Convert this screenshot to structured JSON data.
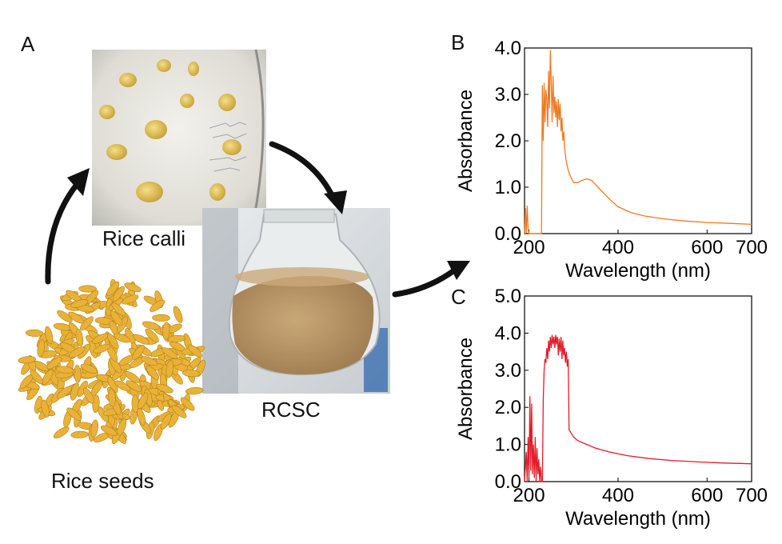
{
  "panels": {
    "a": {
      "letter": "A",
      "calli_label": "Rice calli",
      "rcsc_label": "RCSC",
      "seeds_label": "Rice seeds"
    },
    "b": {
      "letter": "B"
    },
    "c": {
      "letter": "C"
    }
  },
  "colors": {
    "orange_series": "#f07a20",
    "red_series": "#e01e2a",
    "seed": "#e9b237",
    "broth": "#b89465"
  },
  "chart_data": [
    {
      "panel": "B",
      "type": "line",
      "xlabel": "Wavelength (nm)",
      "ylabel": "Absorbance",
      "xlim": [
        190,
        700
      ],
      "ylim": [
        0,
        4.0
      ],
      "xticks": [
        200,
        400,
        600,
        700
      ],
      "yticks": [
        0.0,
        1.0,
        2.0,
        3.0,
        4.0
      ],
      "xtick_labels": [
        "200",
        "400",
        "600",
        "700"
      ],
      "ytick_labels": [
        "0.0",
        "1.0",
        "2.0",
        "3.0",
        "4.0"
      ],
      "color": "#f07a20",
      "x": [
        190,
        192,
        194,
        196,
        198,
        200,
        202,
        210,
        218,
        225,
        228,
        230,
        232,
        234,
        236,
        238,
        240,
        242,
        244,
        246,
        248,
        250,
        252,
        254,
        256,
        258,
        260,
        262,
        264,
        266,
        268,
        270,
        272,
        274,
        276,
        278,
        280,
        283,
        286,
        290,
        295,
        300,
        310,
        320,
        330,
        340,
        350,
        360,
        380,
        400,
        430,
        460,
        500,
        550,
        600,
        650,
        700
      ],
      "y": [
        0.0,
        0.55,
        0.0,
        0.6,
        0.1,
        0.0,
        0.0,
        0.0,
        0.0,
        0.0,
        0.0,
        3.2,
        2.0,
        3.25,
        2.4,
        3.1,
        2.9,
        2.3,
        3.5,
        2.7,
        3.95,
        3.3,
        2.4,
        3.4,
        2.6,
        2.95,
        2.5,
        2.85,
        2.3,
        2.9,
        2.45,
        2.8,
        2.2,
        2.5,
        2.0,
        2.2,
        1.85,
        1.6,
        1.45,
        1.3,
        1.2,
        1.1,
        1.1,
        1.15,
        1.18,
        1.15,
        1.05,
        0.95,
        0.75,
        0.58,
        0.45,
        0.38,
        0.32,
        0.27,
        0.24,
        0.22,
        0.2
      ]
    },
    {
      "panel": "C",
      "type": "line",
      "xlabel": "Wavelength (nm)",
      "ylabel": "Absorbance",
      "xlim": [
        190,
        700
      ],
      "ylim": [
        0,
        5.0
      ],
      "xticks": [
        200,
        400,
        600,
        700
      ],
      "yticks": [
        0.0,
        1.0,
        2.0,
        3.0,
        4.0,
        5.0
      ],
      "xtick_labels": [
        "200",
        "400",
        "600",
        "700"
      ],
      "ytick_labels": [
        "0.0",
        "1.0",
        "2.0",
        "3.0",
        "4.0",
        "5.0"
      ],
      "color": "#e01e2a",
      "x": [
        190,
        194,
        196,
        198,
        200,
        202,
        204,
        206,
        208,
        210,
        212,
        214,
        216,
        218,
        220,
        222,
        224,
        226,
        228,
        230,
        232,
        234,
        236,
        238,
        240,
        242,
        244,
        246,
        248,
        250,
        252,
        254,
        256,
        258,
        260,
        262,
        264,
        266,
        268,
        270,
        272,
        274,
        276,
        278,
        280,
        282,
        284,
        286,
        288,
        290,
        295,
        300,
        310,
        330,
        350,
        380,
        420,
        470,
        520,
        580,
        640,
        700
      ],
      "y": [
        0.0,
        0.8,
        0.0,
        1.2,
        0.1,
        2.3,
        0.3,
        2.1,
        0.2,
        1.0,
        0.1,
        1.2,
        0.0,
        0.9,
        0.2,
        0.6,
        0.0,
        0.4,
        0.0,
        0.0,
        2.2,
        3.0,
        3.3,
        3.2,
        3.6,
        3.3,
        3.8,
        3.5,
        3.9,
        3.6,
        3.95,
        3.7,
        3.9,
        3.6,
        3.95,
        3.7,
        3.9,
        3.4,
        3.85,
        3.5,
        3.9,
        3.3,
        3.8,
        3.4,
        3.6,
        3.2,
        3.5,
        3.1,
        3.3,
        1.4,
        1.3,
        1.2,
        1.1,
        1.0,
        0.9,
        0.8,
        0.7,
        0.62,
        0.57,
        0.53,
        0.5,
        0.48
      ]
    }
  ]
}
